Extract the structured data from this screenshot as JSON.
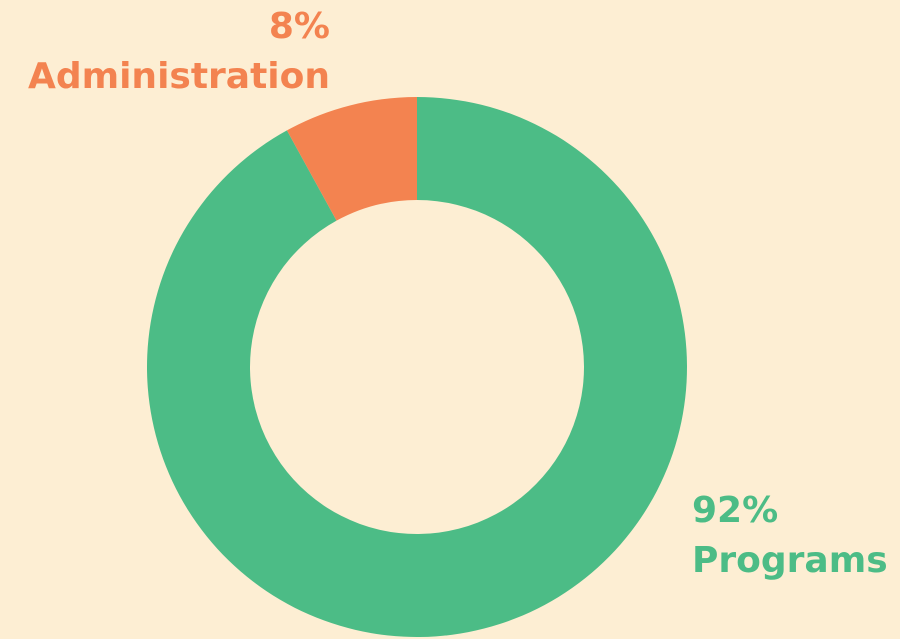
{
  "chart_data": {
    "type": "donut",
    "categories": [
      "Programs",
      "Administration"
    ],
    "values": [
      92,
      8
    ],
    "value_labels": [
      "92%",
      "8%"
    ],
    "colors": [
      "#4cbc86",
      "#f38350"
    ]
  }
}
